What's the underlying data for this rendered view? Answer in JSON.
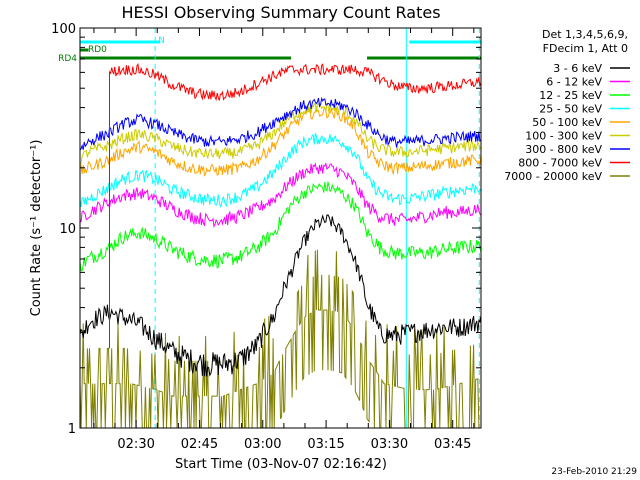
{
  "chart_data": {
    "type": "line",
    "title": "HESSI Observing Summary Count Rates",
    "xlabel": "Start Time (03-Nov-07 02:16:42)",
    "ylabel": "Count Rate (s⁻¹ detector⁻¹)",
    "yscale": "log",
    "ylim": [
      1,
      100
    ],
    "xlim_minutes_since_start": [
      0,
      95
    ],
    "x_ticks": [
      {
        "t": 13.3,
        "label": "02:30"
      },
      {
        "t": 28.3,
        "label": "02:45"
      },
      {
        "t": 43.3,
        "label": "03:00"
      },
      {
        "t": 58.3,
        "label": "03:15"
      },
      {
        "t": 73.3,
        "label": "03:30"
      },
      {
        "t": 88.3,
        "label": "03:45"
      }
    ],
    "y_ticks": [
      {
        "v": 1,
        "label": "1"
      },
      {
        "v": 10,
        "label": "10"
      },
      {
        "v": 100,
        "label": "100"
      }
    ],
    "legend_header": [
      "Det 1,3,4,5,6,9,",
      "FDecim 1, Att 0"
    ],
    "legend_position": "right",
    "flags": [
      {
        "label": "N",
        "color": "#00ffff",
        "segments": [
          [
            0,
            19
          ],
          [
            78,
            95
          ]
        ]
      },
      {
        "label": "RD0",
        "color": "#008000",
        "segments": [
          [
            0,
            2
          ]
        ]
      },
      {
        "label": "RD4",
        "color": "#008000",
        "segments": [
          [
            0,
            6.5
          ],
          [
            6.5,
            50
          ],
          [
            68,
            95
          ]
        ]
      }
    ],
    "vlines": [
      {
        "t": 0.0,
        "color": "#00ffff",
        "style": "solid"
      },
      {
        "t": 17.8,
        "color": "#00ffff",
        "style": "dashed"
      },
      {
        "t": 77.3,
        "color": "#00ffff",
        "style": "solid"
      },
      {
        "t": 94.6,
        "color": "#00ffff",
        "style": "dashed"
      }
    ],
    "series": [
      {
        "name": "3 - 6 keV",
        "color": "#000000",
        "x": [
          0,
          2,
          7,
          10,
          14,
          18,
          22,
          26,
          30,
          34,
          38,
          42,
          46,
          50,
          53,
          56,
          59,
          62,
          65,
          68,
          71,
          74,
          78,
          82,
          86,
          90,
          95
        ],
        "y": [
          2.8,
          3.4,
          3.8,
          3.6,
          3.3,
          2.8,
          2.4,
          2.2,
          2.1,
          2.1,
          2.2,
          2.6,
          3.6,
          6,
          8.5,
          10.5,
          11,
          9.5,
          7,
          4.2,
          3,
          2.9,
          3,
          3.1,
          3.2,
          3.2,
          3.4
        ]
      },
      {
        "name": "6 - 12 keV",
        "color": "#ff00ff",
        "x": [
          0,
          2,
          7,
          10,
          14,
          18,
          22,
          26,
          30,
          34,
          38,
          42,
          46,
          50,
          53,
          56,
          59,
          62,
          65,
          68,
          71,
          74,
          78,
          82,
          86,
          90,
          95
        ],
        "y": [
          11,
          12,
          13.5,
          14.5,
          15,
          14,
          12.5,
          11.5,
          11,
          11,
          11.5,
          12.5,
          14,
          17,
          19,
          20,
          20,
          19,
          16.5,
          13,
          11.5,
          11,
          11,
          11.5,
          12,
          12,
          12.5
        ]
      },
      {
        "name": "12 - 25 keV",
        "color": "#00ff00",
        "x": [
          0,
          2,
          7,
          10,
          14,
          18,
          22,
          26,
          30,
          34,
          38,
          42,
          46,
          50,
          53,
          56,
          59,
          62,
          65,
          68,
          71,
          74,
          78,
          82,
          86,
          90,
          95
        ],
        "y": [
          6.5,
          7,
          8,
          9,
          9.5,
          8.8,
          7.8,
          7.2,
          6.9,
          6.9,
          7.2,
          8,
          9.5,
          13,
          15,
          16,
          16,
          15,
          13,
          9.5,
          8,
          7.5,
          7.5,
          7.5,
          7.8,
          8,
          8.2
        ]
      },
      {
        "name": "25 - 50 keV",
        "color": "#00ffff",
        "x": [
          0,
          2,
          7,
          10,
          14,
          18,
          22,
          26,
          30,
          34,
          38,
          42,
          46,
          50,
          53,
          56,
          59,
          62,
          65,
          68,
          71,
          74,
          78,
          82,
          86,
          90,
          95
        ],
        "y": [
          13,
          14,
          16,
          17.5,
          18.5,
          17.5,
          15.5,
          14.5,
          13.8,
          13.8,
          14.5,
          16,
          19,
          24,
          27,
          28,
          28,
          27,
          24,
          17.5,
          15,
          14,
          14,
          14.5,
          15,
          15.5,
          16
        ]
      },
      {
        "name": "50 - 100 keV",
        "color": "#ffa500",
        "x": [
          0,
          2,
          7,
          10,
          14,
          18,
          22,
          26,
          30,
          34,
          38,
          42,
          46,
          50,
          53,
          56,
          59,
          62,
          65,
          68,
          71,
          74,
          78,
          82,
          86,
          90,
          95
        ],
        "y": [
          19,
          20,
          22,
          24,
          25.5,
          24,
          21.5,
          20,
          19.5,
          19.5,
          20,
          22,
          26,
          32,
          36.5,
          38,
          38,
          36.5,
          32,
          24,
          21,
          20,
          20,
          20.5,
          21,
          21.5,
          22
        ]
      },
      {
        "name": "100 - 300 keV",
        "color": "#cccc00",
        "x": [
          0,
          2,
          7,
          10,
          14,
          18,
          22,
          26,
          30,
          34,
          38,
          42,
          46,
          50,
          53,
          56,
          59,
          62,
          65,
          68,
          71,
          74,
          78,
          82,
          86,
          90,
          95
        ],
        "y": [
          22,
          24,
          26,
          28,
          29.5,
          28,
          25.5,
          24,
          23.5,
          23.5,
          24,
          26,
          30,
          36,
          39,
          40,
          40,
          39,
          35,
          28,
          25,
          24,
          24,
          24.5,
          25,
          25.5,
          26
        ]
      },
      {
        "name": "300 - 800 keV",
        "color": "#0000ff",
        "x": [
          0,
          2,
          7,
          10,
          14,
          18,
          22,
          26,
          30,
          34,
          38,
          42,
          46,
          50,
          53,
          56,
          59,
          62,
          65,
          68,
          71,
          74,
          78,
          82,
          86,
          90,
          95
        ],
        "y": [
          25,
          27,
          30,
          33,
          35,
          33,
          30,
          28,
          27,
          27,
          28,
          30,
          34,
          38,
          41,
          42,
          42,
          41,
          38,
          33,
          29,
          27,
          27,
          27.5,
          28,
          28.5,
          29
        ]
      },
      {
        "name": "800 - 7000 keV",
        "color": "#ff0000",
        "x": [
          7,
          10,
          14,
          18,
          22,
          26,
          30,
          34,
          38,
          42,
          46,
          50,
          53,
          56,
          59,
          62,
          65,
          68,
          71,
          74,
          78,
          82,
          86,
          90,
          95
        ],
        "y": [
          60,
          62,
          62,
          58,
          52,
          48,
          46,
          46,
          48,
          53,
          58,
          62,
          62,
          62,
          62,
          62,
          62,
          60,
          56,
          52,
          50,
          50,
          51,
          52,
          54
        ]
      },
      {
        "name": "7000 - 20000 keV",
        "color": "#808000",
        "x": [
          0,
          6,
          12,
          18,
          22,
          26,
          30,
          34,
          38,
          42,
          46,
          50,
          53,
          56,
          59,
          62,
          65,
          68,
          72,
          78,
          84,
          90,
          95
        ],
        "y": [
          1.5,
          1.5,
          1.5,
          1.4,
          1.3,
          1.3,
          1.3,
          1.3,
          1.4,
          1.5,
          1.7,
          2.5,
          3.2,
          3.5,
          3.5,
          3.4,
          2.8,
          2,
          1.5,
          1.4,
          1.4,
          1.5,
          1.6
        ]
      }
    ]
  },
  "footer": {
    "timestamp": "23-Feb-2010 21:29"
  }
}
